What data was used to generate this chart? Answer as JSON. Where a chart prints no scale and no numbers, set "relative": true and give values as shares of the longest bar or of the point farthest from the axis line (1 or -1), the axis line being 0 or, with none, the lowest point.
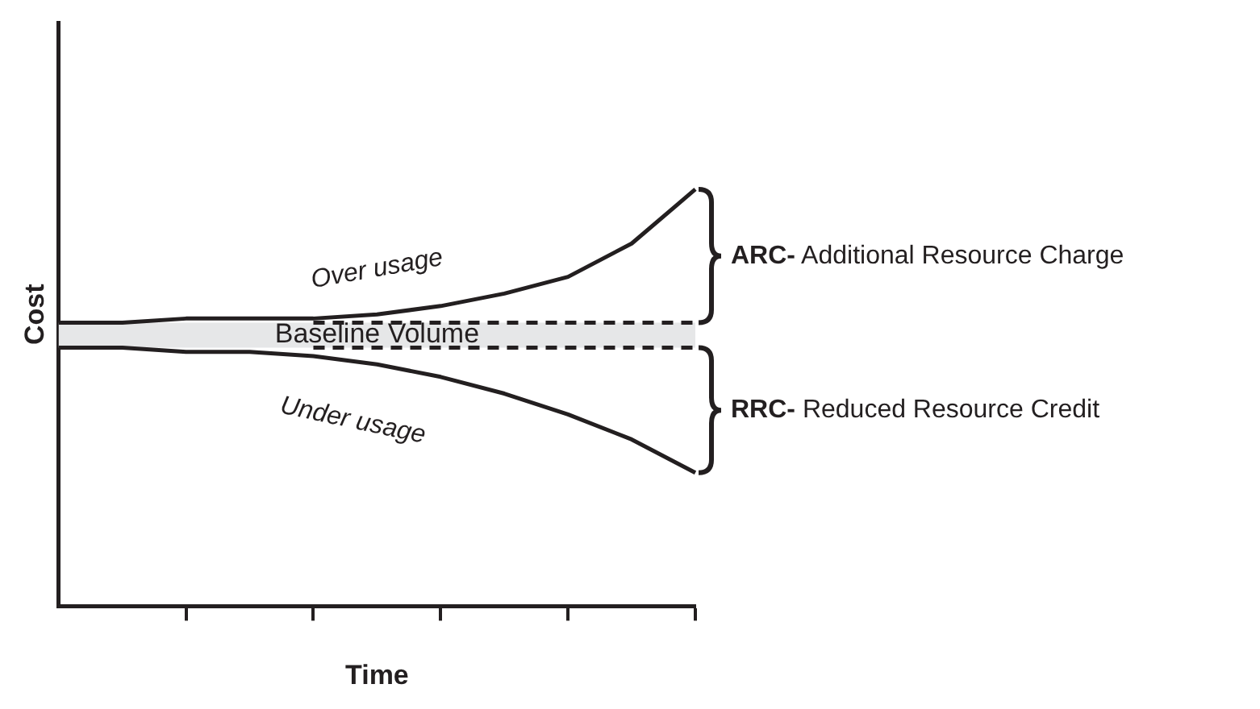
{
  "chart_data": {
    "type": "line",
    "relative": true,
    "xlabel": "Time",
    "ylabel": "Cost",
    "categories": [
      null,
      null,
      null,
      null,
      null,
      null,
      null,
      null,
      null,
      null,
      null
    ],
    "series": [
      {
        "color": "#231f20",
        "values": [
          0.68,
          0.68,
          0.69,
          0.69,
          0.69,
          0.7,
          0.72,
          0.75,
          0.79,
          0.87,
          1
        ]
      },
      {
        "color": "#231f20",
        "values": [
          0.62,
          0.62,
          0.61,
          0.61,
          0.6,
          0.58,
          0.55,
          0.51,
          0.46,
          0.4,
          0.32
        ]
      },
      {
        "color": "#231f20",
        "values": [
          null,
          null,
          null,
          null,
          0.68,
          0.68,
          0.68,
          0.68,
          0.68,
          0.68,
          0.68
        ],
        "line_style": "dashed"
      },
      {
        "color": "#231f20",
        "values": [
          null,
          null,
          null,
          null,
          0.62,
          0.62,
          0.62,
          0.62,
          0.62,
          0.62,
          0.62
        ],
        "line_style": "dashed"
      }
    ],
    "bands": [
      {
        "axis": "y",
        "from": 0.62,
        "to": 0.68,
        "label": "Baseline Volume",
        "color": "#e6e7e8"
      }
    ],
    "annotations": [
      "Over usage",
      "Under usage",
      "ARC- Additional Resource Charge",
      "RRC- Reduced Resource Credit"
    ],
    "marker": "none",
    "line_style": "solid",
    "grid": false,
    "legend": false
  }
}
